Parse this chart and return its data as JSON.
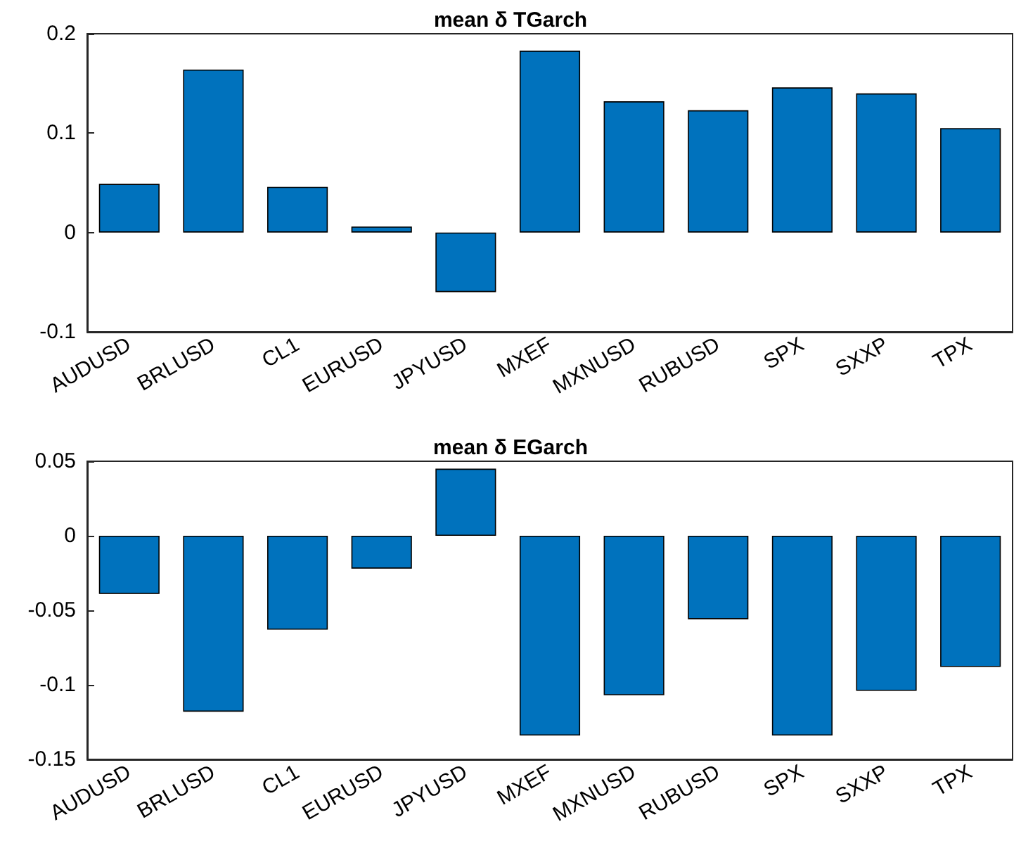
{
  "chart_data": [
    {
      "type": "bar",
      "title": "mean δ TGarch",
      "categories": [
        "AUDUSD",
        "BRLUSD",
        "CL1",
        "EURUSD",
        "JPYUSD",
        "MXEF",
        "MXNUSD",
        "RUBUSD",
        "SPX",
        "SXXP",
        "TPX"
      ],
      "values": [
        0.049,
        0.164,
        0.046,
        0.006,
        -0.06,
        0.183,
        0.132,
        0.123,
        0.146,
        0.14,
        0.105
      ],
      "color": "#0072bd",
      "ylim": [
        -0.1,
        0.2
      ],
      "yticks": [
        -0.1,
        0,
        0.1,
        0.2
      ],
      "grid": false
    },
    {
      "type": "bar",
      "title": "mean δ EGarch",
      "categories": [
        "AUDUSD",
        "BRLUSD",
        "CL1",
        "EURUSD",
        "JPYUSD",
        "MXEF",
        "MXNUSD",
        "RUBUSD",
        "SPX",
        "SXXP",
        "TPX"
      ],
      "values": [
        -0.039,
        -0.118,
        -0.063,
        -0.022,
        0.045,
        -0.134,
        -0.107,
        -0.056,
        -0.134,
        -0.104,
        -0.088
      ],
      "color": "#0072bd",
      "ylim": [
        -0.15,
        0.05
      ],
      "yticks": [
        -0.15,
        -0.1,
        -0.05,
        0,
        0.05
      ],
      "grid": false
    }
  ]
}
